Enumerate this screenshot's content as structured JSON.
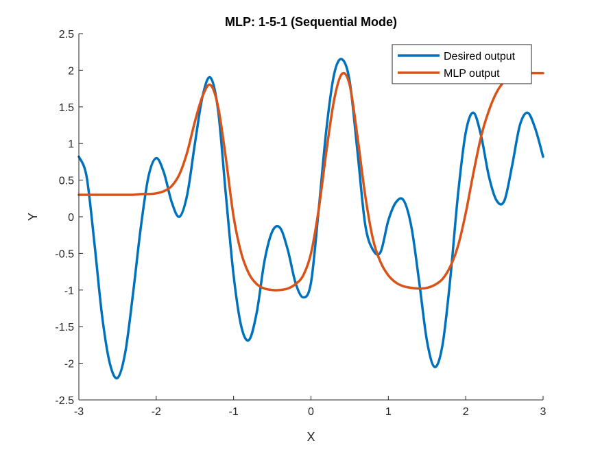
{
  "chart_data": {
    "type": "line",
    "title": "MLP: 1-5-1 (Sequential Mode)",
    "xlabel": "X",
    "ylabel": "Y",
    "xlim": [
      -3,
      3
    ],
    "ylim": [
      -2.5,
      2.5
    ],
    "xticks": [
      -3,
      -2,
      -1,
      0,
      1,
      2,
      3
    ],
    "yticks": [
      -2.5,
      -2,
      -1.5,
      -1,
      -0.5,
      0,
      0.5,
      1,
      1.5,
      2,
      2.5
    ],
    "xtick_labels": [
      "-3",
      "-2",
      "-1",
      "0",
      "1",
      "2",
      "3"
    ],
    "ytick_labels": [
      "-2.5",
      "-2",
      "-1.5",
      "-1",
      "-0.5",
      "0",
      "0.5",
      "1",
      "1.5",
      "2",
      "2.5"
    ],
    "grid": false,
    "legend_position": "top-right",
    "series": [
      {
        "name": "Desired output",
        "color": "#0072BD",
        "x": [
          -3.0,
          -2.9,
          -2.8,
          -2.7,
          -2.6,
          -2.5,
          -2.4,
          -2.3,
          -2.2,
          -2.1,
          -2.0,
          -1.9,
          -1.8,
          -1.7,
          -1.6,
          -1.5,
          -1.4,
          -1.3,
          -1.2,
          -1.1,
          -1.0,
          -0.9,
          -0.8,
          -0.7,
          -0.6,
          -0.5,
          -0.4,
          -0.3,
          -0.2,
          -0.1,
          0.0,
          0.1,
          0.2,
          0.3,
          0.4,
          0.5,
          0.6,
          0.7,
          0.8,
          0.9,
          1.0,
          1.1,
          1.2,
          1.3,
          1.4,
          1.5,
          1.6,
          1.7,
          1.8,
          1.9,
          2.0,
          2.1,
          2.2,
          2.3,
          2.4,
          2.5,
          2.6,
          2.7,
          2.8,
          2.9,
          3.0
        ],
        "y": [
          0.82,
          0.55,
          -0.35,
          -1.35,
          -2.0,
          -2.2,
          -1.85,
          -1.05,
          -0.15,
          0.55,
          0.8,
          0.6,
          0.2,
          0.0,
          0.3,
          1.0,
          1.65,
          1.9,
          1.45,
          0.3,
          -0.8,
          -1.5,
          -1.68,
          -1.3,
          -0.6,
          -0.2,
          -0.15,
          -0.45,
          -0.9,
          -1.1,
          -0.9,
          0.1,
          1.2,
          1.95,
          2.15,
          1.85,
          0.9,
          -0.1,
          -0.45,
          -0.48,
          -0.05,
          0.2,
          0.22,
          -0.15,
          -0.9,
          -1.7,
          -2.05,
          -1.75,
          -0.85,
          0.3,
          1.15,
          1.42,
          1.1,
          0.55,
          0.22,
          0.22,
          0.7,
          1.25,
          1.42,
          1.2,
          0.82
        ]
      },
      {
        "name": "MLP output",
        "color": "#D95319",
        "x": [
          -3.0,
          -2.9,
          -2.8,
          -2.7,
          -2.6,
          -2.5,
          -2.4,
          -2.3,
          -2.2,
          -2.1,
          -2.0,
          -1.9,
          -1.8,
          -1.7,
          -1.6,
          -1.5,
          -1.4,
          -1.3,
          -1.2,
          -1.1,
          -1.0,
          -0.9,
          -0.8,
          -0.7,
          -0.6,
          -0.5,
          -0.4,
          -0.3,
          -0.2,
          -0.1,
          0.0,
          0.1,
          0.2,
          0.3,
          0.4,
          0.5,
          0.6,
          0.7,
          0.8,
          0.9,
          1.0,
          1.1,
          1.2,
          1.3,
          1.4,
          1.5,
          1.6,
          1.7,
          1.8,
          1.9,
          2.0,
          2.1,
          2.2,
          2.3,
          2.4,
          2.5,
          2.6,
          2.7,
          2.8,
          2.9,
          3.0
        ],
        "y": [
          0.3,
          0.3,
          0.3,
          0.3,
          0.3,
          0.3,
          0.3,
          0.3,
          0.31,
          0.31,
          0.32,
          0.35,
          0.42,
          0.58,
          0.88,
          1.3,
          1.65,
          1.8,
          1.5,
          0.8,
          0.0,
          -0.5,
          -0.78,
          -0.92,
          -0.98,
          -1.0,
          -1.0,
          -0.98,
          -0.92,
          -0.8,
          -0.5,
          0.1,
          0.9,
          1.6,
          1.95,
          1.8,
          1.1,
          0.3,
          -0.3,
          -0.62,
          -0.8,
          -0.9,
          -0.95,
          -0.97,
          -0.98,
          -0.97,
          -0.93,
          -0.85,
          -0.68,
          -0.4,
          0.05,
          0.6,
          1.1,
          1.45,
          1.7,
          1.85,
          1.92,
          1.95,
          1.96,
          1.96,
          1.96
        ]
      }
    ]
  }
}
